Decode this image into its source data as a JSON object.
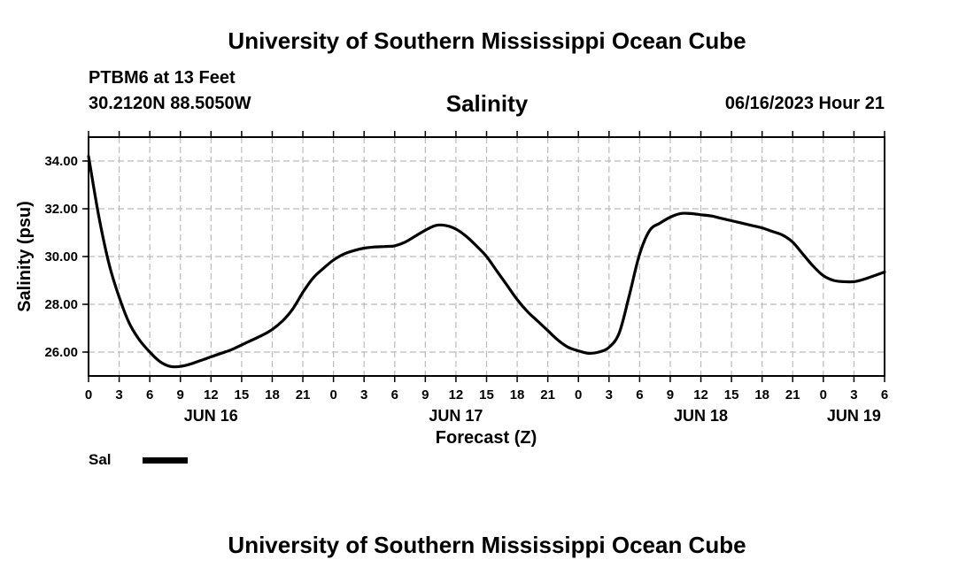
{
  "header": {
    "title_top": "University of Southern Mississippi Ocean Cube",
    "station": "PTBM6 at 13 Feet",
    "coords": "30.2120N  88.5050W",
    "datetime": "06/16/2023 Hour 21",
    "title_bottom": "University of Southern Mississippi Ocean Cube"
  },
  "legend": {
    "label": "Sal"
  },
  "colors": {
    "line": "#000000",
    "grid": "#bbbbbb",
    "background": "#ffffff"
  },
  "chart_data": {
    "type": "line",
    "title": "Salinity",
    "xlabel": "Forecast (Z)",
    "ylabel": "Salinity (psu)",
    "xlim": [
      0,
      78
    ],
    "ylim": [
      25,
      35
    ],
    "y_ticks": [
      26,
      28,
      30,
      32,
      34
    ],
    "y_tick_labels": [
      "26.00",
      "28.00",
      "30.00",
      "32.00",
      "34.00"
    ],
    "x_ticks": [
      0,
      3,
      6,
      9,
      12,
      15,
      18,
      21,
      24,
      27,
      30,
      33,
      36,
      39,
      42,
      45,
      48,
      51,
      54,
      57,
      60,
      63,
      66,
      69,
      72,
      75,
      78
    ],
    "x_tick_labels": [
      "0",
      "3",
      "6",
      "9",
      "12",
      "15",
      "18",
      "21",
      "0",
      "3",
      "6",
      "9",
      "12",
      "15",
      "18",
      "21",
      "0",
      "3",
      "6",
      "9",
      "12",
      "15",
      "18",
      "21",
      "0",
      "3",
      "6"
    ],
    "date_labels": [
      {
        "x": 12,
        "label": "JUN 16"
      },
      {
        "x": 36,
        "label": "JUN 17"
      },
      {
        "x": 60,
        "label": "JUN 18"
      },
      {
        "x": 75,
        "label": "JUN 19"
      }
    ],
    "grid": true,
    "series": [
      {
        "name": "Sal",
        "x": [
          0,
          1,
          2,
          3,
          4,
          5,
          6,
          7,
          8,
          9,
          10,
          11,
          12,
          13,
          14,
          15,
          16,
          17,
          18,
          19,
          20,
          21,
          22,
          23,
          24,
          25,
          26,
          27,
          28,
          29,
          30,
          31,
          32,
          33,
          34,
          35,
          36,
          37,
          38,
          39,
          40,
          41,
          42,
          43,
          44,
          45,
          46,
          47,
          48,
          49,
          50,
          51,
          52,
          53,
          54,
          55,
          56,
          57,
          58,
          59,
          60,
          61,
          62,
          63,
          64,
          65,
          66,
          67,
          68,
          69,
          70,
          71,
          72,
          73,
          74,
          75,
          76,
          77,
          78
        ],
        "values": [
          34.2,
          31.7,
          29.7,
          28.3,
          27.2,
          26.5,
          26.0,
          25.6,
          25.4,
          25.4,
          25.5,
          25.65,
          25.8,
          25.95,
          26.1,
          26.3,
          26.5,
          26.7,
          26.95,
          27.3,
          27.8,
          28.5,
          29.1,
          29.5,
          29.85,
          30.1,
          30.25,
          30.35,
          30.4,
          30.42,
          30.45,
          30.6,
          30.85,
          31.1,
          31.3,
          31.3,
          31.15,
          30.85,
          30.45,
          30.0,
          29.4,
          28.8,
          28.2,
          27.7,
          27.3,
          26.9,
          26.5,
          26.2,
          26.05,
          25.95,
          26.0,
          26.2,
          26.8,
          28.4,
          30.1,
          31.1,
          31.4,
          31.65,
          31.8,
          31.8,
          31.75,
          31.7,
          31.6,
          31.5,
          31.4,
          31.3,
          31.2,
          31.05,
          30.9,
          30.6,
          30.1,
          29.6,
          29.2,
          29.0,
          28.95,
          28.95,
          29.05,
          29.2,
          29.35
        ]
      }
    ]
  }
}
